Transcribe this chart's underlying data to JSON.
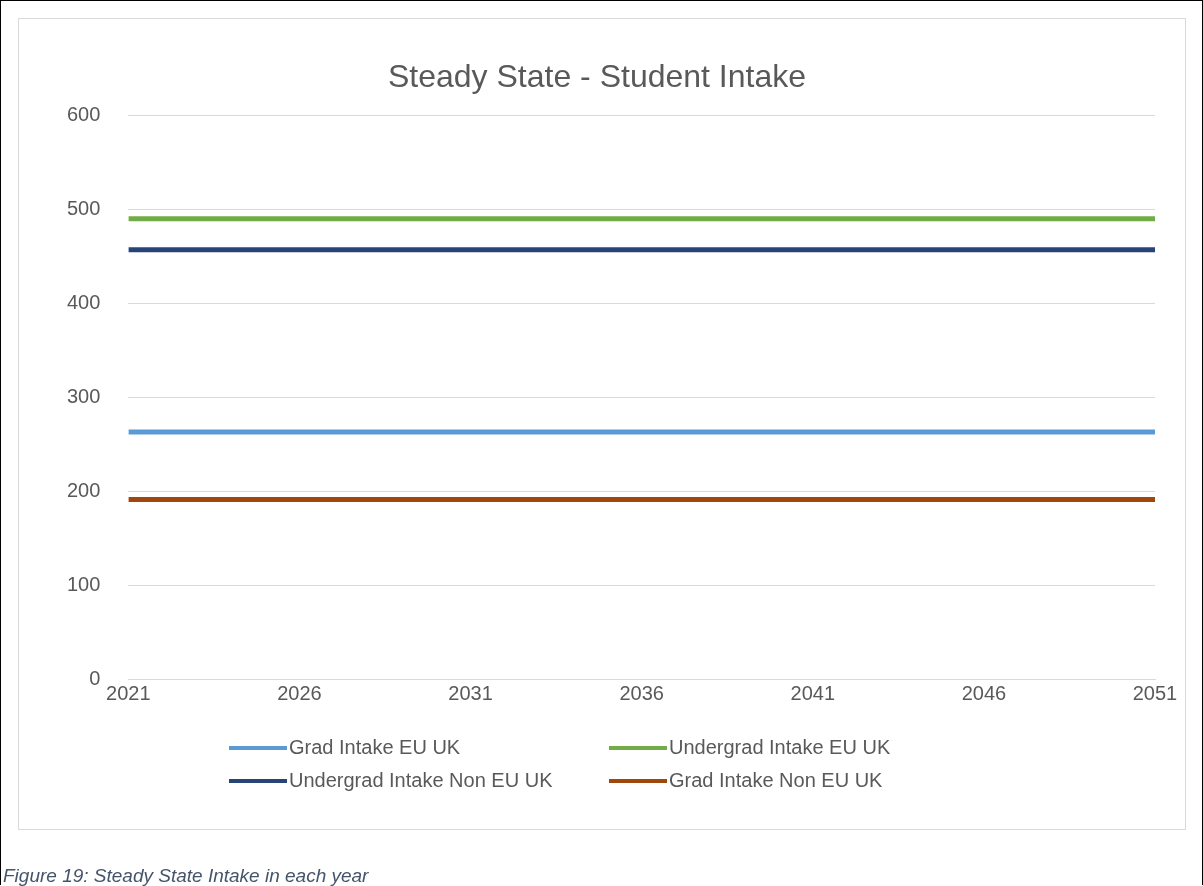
{
  "chart_data": {
    "type": "line",
    "title": "Steady State - Student Intake",
    "x": [
      2021,
      2051
    ],
    "xlim": [
      2021,
      2051
    ],
    "xticks": [
      2021,
      2026,
      2031,
      2036,
      2041,
      2046,
      2051
    ],
    "ylim": [
      0,
      600
    ],
    "yticks": [
      0,
      100,
      200,
      300,
      400,
      500,
      600
    ],
    "series": [
      {
        "name": "Grad Intake EU UK",
        "color": "#5b9bd5",
        "values": [
          263,
          263
        ]
      },
      {
        "name": "Undergrad Intake EU UK",
        "color": "#70ad47",
        "values": [
          490,
          490
        ]
      },
      {
        "name": "Undergrad Intake Non EU UK",
        "color": "#264478",
        "values": [
          457,
          457
        ]
      },
      {
        "name": "Grad Intake Non EU UK",
        "color": "#9e480e",
        "values": [
          191,
          191
        ]
      }
    ],
    "grid": "y",
    "legend": "bottom",
    "marker": "none",
    "line_style": "solid",
    "annotations": [
      "Figure 19: Steady State Intake in each year"
    ]
  }
}
